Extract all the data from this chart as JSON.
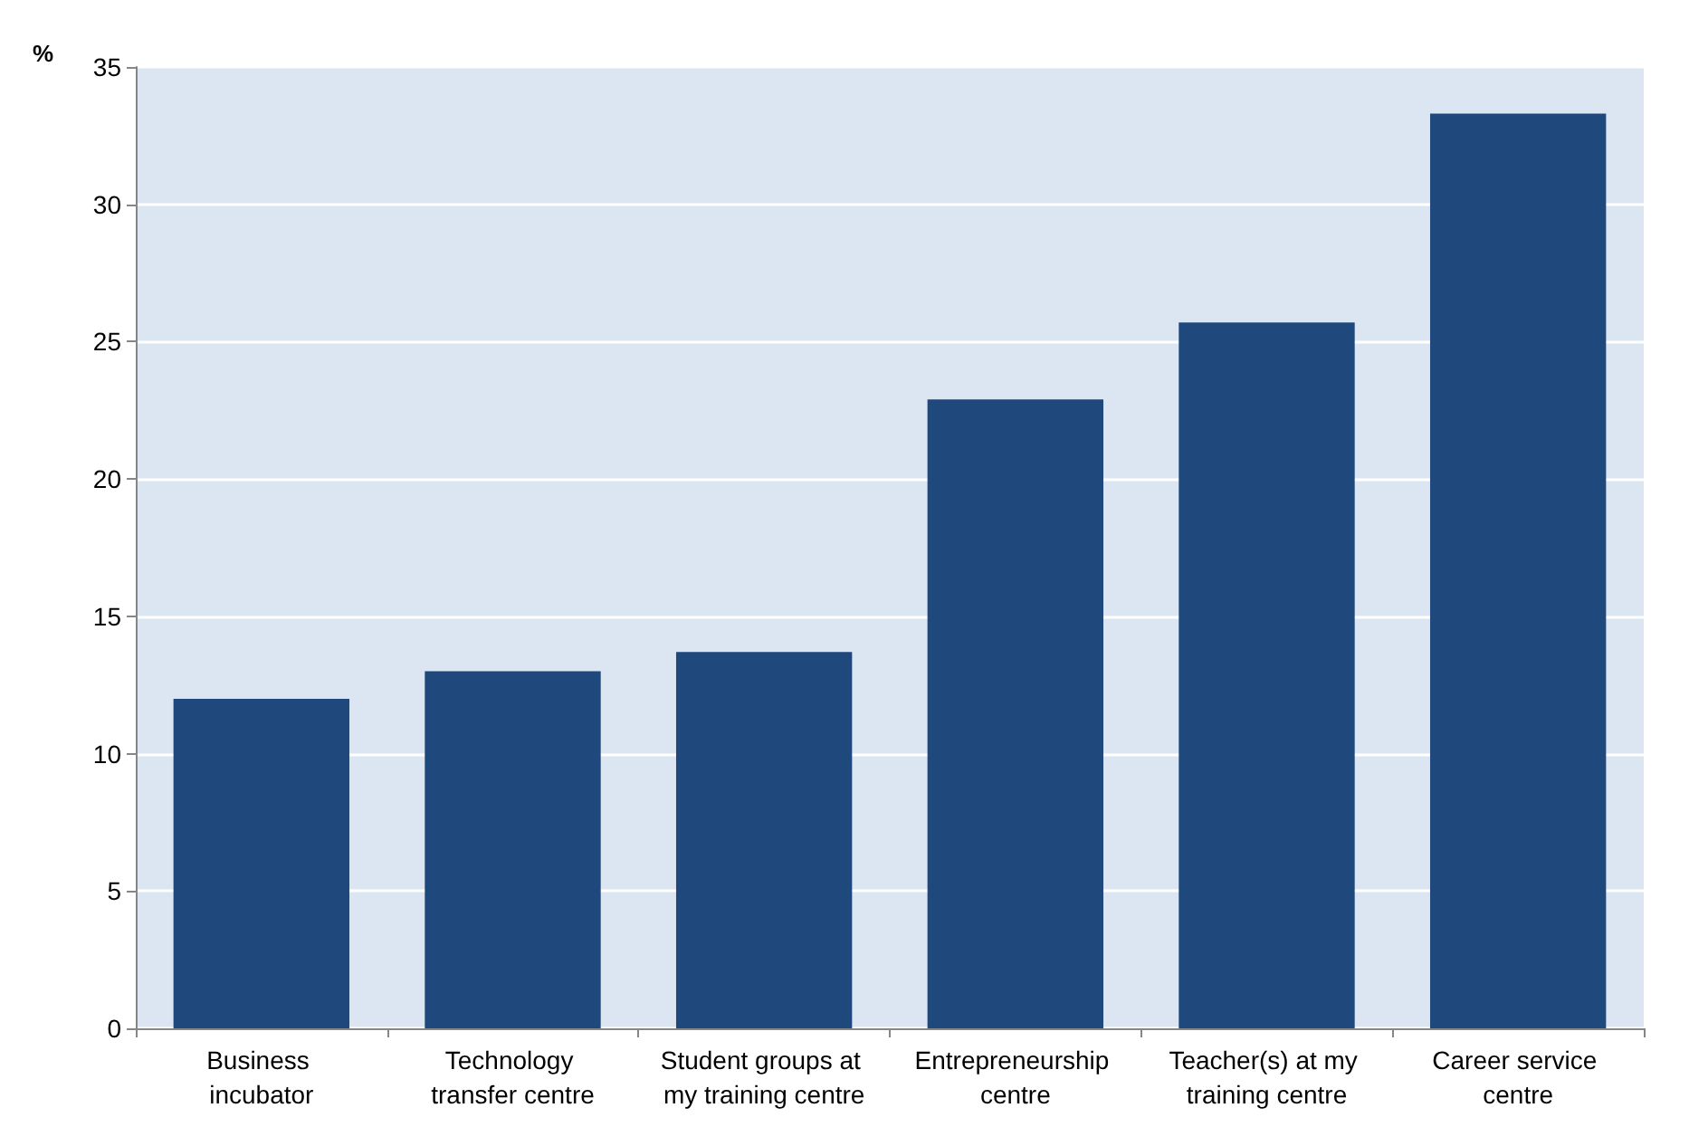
{
  "chart_data": {
    "type": "bar",
    "ylabel": "%",
    "categories": [
      "Business incubator",
      "Technology transfer centre",
      "Student groups at my training centre",
      "Entrepreneurship centre",
      "Teacher(s) at my training centre",
      "Career service centre"
    ],
    "values": [
      12.0,
      13.0,
      13.7,
      22.9,
      25.7,
      33.3
    ],
    "color": "#1f497d",
    "ylim": [
      0,
      35
    ],
    "yticks": [
      0,
      5,
      10,
      15,
      20,
      25,
      30,
      35
    ],
    "grid": "y"
  }
}
